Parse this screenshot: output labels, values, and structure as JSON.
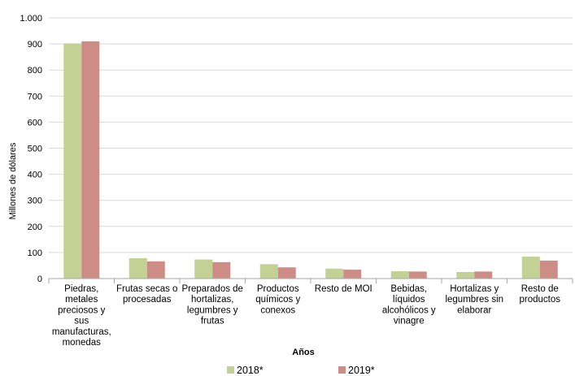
{
  "chart_data": {
    "type": "bar",
    "title": "",
    "xlabel": "Años",
    "ylabel": "Millones de dólares",
    "ylim": [
      0,
      1000
    ],
    "yticks": [
      0,
      100,
      200,
      300,
      400,
      500,
      600,
      700,
      800,
      900,
      1000
    ],
    "ytick_labels": [
      "0",
      "100",
      "200",
      "300",
      "400",
      "500",
      "600",
      "700",
      "800",
      "900",
      "1.000"
    ],
    "grid": true,
    "legend_position": "bottom",
    "categories": [
      [
        "Piedras,",
        "metales",
        "preciosos y",
        "sus",
        "manufacturas,",
        "monedas"
      ],
      [
        "Frutas secas o",
        "procesadas"
      ],
      [
        "Preparados de",
        "hortalizas,",
        "legumbres y",
        "frutas"
      ],
      [
        "Productos",
        "químicos y",
        "conexos"
      ],
      [
        "Resto de MOI"
      ],
      [
        "Bebidas,",
        "líquidos",
        "alcohólicos y",
        "vinagre"
      ],
      [
        "Hortalizas y",
        "legumbres sin",
        "elaborar"
      ],
      [
        "Resto de",
        "productos"
      ]
    ],
    "series": [
      {
        "name": "2018*",
        "color": "#c3d195",
        "values": [
          902,
          78,
          73,
          55,
          38,
          28,
          25,
          84
        ]
      },
      {
        "name": "2019*",
        "color": "#cd8d86",
        "values": [
          910,
          66,
          63,
          43,
          34,
          27,
          27,
          69
        ]
      }
    ]
  }
}
